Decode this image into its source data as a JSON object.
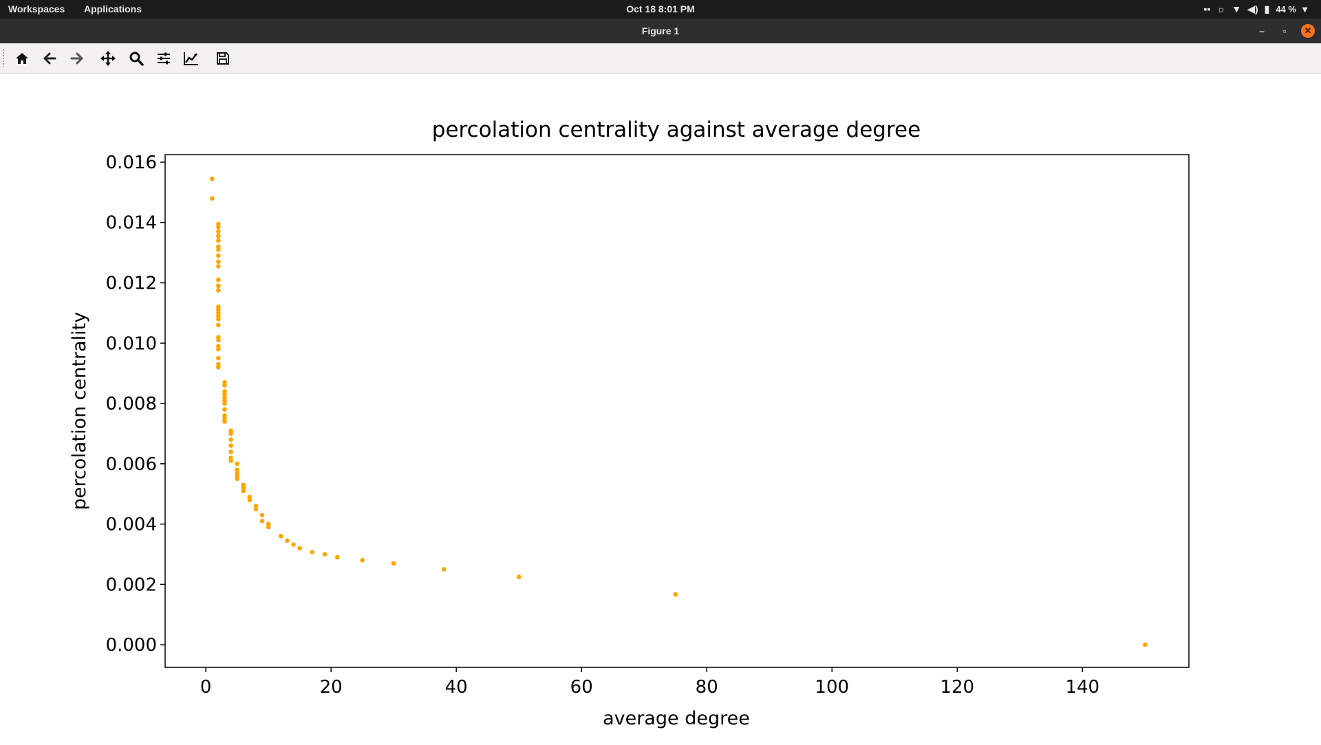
{
  "system_bar": {
    "workspaces_label": "Workspaces",
    "applications_label": "Applications",
    "clock": "Oct 18   8:01 PM",
    "battery": "44 %"
  },
  "window": {
    "title": "Figure 1"
  },
  "toolbar": {
    "tools": [
      "home-icon",
      "back-arrow-icon",
      "forward-arrow-icon",
      "pan-icon",
      "zoom-icon",
      "configure-subplots-icon",
      "edit-axes-icon",
      "save-icon"
    ]
  },
  "colors": {
    "points": "#ffa500",
    "topbar": "#1b1b1b",
    "titlebar": "#2e2e2e",
    "close_button": "#f47421"
  },
  "chart_data": {
    "type": "scatter",
    "title": "percolation centrality against average degree",
    "xlabel": "average degree",
    "ylabel": "percolation centrality",
    "xlim": [
      -6.5,
      157
    ],
    "ylim": [
      -0.00075,
      0.01625
    ],
    "xticks": [
      0,
      20,
      40,
      60,
      80,
      100,
      120,
      140
    ],
    "xtick_labels": [
      "0",
      "20",
      "40",
      "60",
      "80",
      "100",
      "120",
      "140"
    ],
    "yticks": [
      0,
      0.002,
      0.004,
      0.006,
      0.008,
      0.01,
      0.012,
      0.014,
      0.016
    ],
    "ytick_labels": [
      "0.000",
      "0.002",
      "0.004",
      "0.006",
      "0.008",
      "0.010",
      "0.012",
      "0.014",
      "0.016"
    ],
    "grid": false,
    "legend": false,
    "series": [
      {
        "color": "#ffa500",
        "x": [
          1,
          1,
          2,
          2,
          2,
          2,
          2,
          2,
          2,
          2,
          2,
          2,
          2,
          2,
          2,
          2,
          2,
          2,
          2,
          2,
          2,
          2,
          2,
          2,
          2,
          2,
          2,
          2,
          2,
          3,
          3,
          3,
          3,
          3,
          3,
          3,
          3,
          3,
          3,
          3,
          4,
          4,
          4,
          4,
          4,
          4,
          4,
          5,
          5,
          5,
          5,
          5,
          6,
          6,
          6,
          7,
          7,
          8,
          8,
          9,
          9,
          10,
          10,
          12,
          13,
          14,
          15,
          17,
          19,
          21,
          25,
          30,
          38,
          50,
          75,
          150
        ],
        "y": [
          0.01545,
          0.0148,
          0.01395,
          0.01385,
          0.0137,
          0.01355,
          0.0134,
          0.0132,
          0.0131,
          0.0129,
          0.0127,
          0.01255,
          0.0121,
          0.0119,
          0.01175,
          0.0112,
          0.0111,
          0.0109,
          0.0108,
          0.0106,
          0.0102,
          0.0101,
          0.0099,
          0.0098,
          0.0095,
          0.0093,
          0.0092,
          0.0119,
          0.011,
          0.0087,
          0.0086,
          0.0084,
          0.0083,
          0.0082,
          0.0081,
          0.0078,
          0.0076,
          0.0075,
          0.0074,
          0.008,
          0.0071,
          0.007,
          0.0068,
          0.0066,
          0.0064,
          0.0062,
          0.0061,
          0.006,
          0.0058,
          0.0057,
          0.0056,
          0.0055,
          0.0053,
          0.0052,
          0.0051,
          0.0049,
          0.0048,
          0.0046,
          0.0045,
          0.0043,
          0.0041,
          0.004,
          0.0039,
          0.0036,
          0.00345,
          0.00332,
          0.0032,
          0.00307,
          0.003,
          0.0029,
          0.0028,
          0.0027,
          0.0025,
          0.00225,
          0.00167,
          0.0
        ]
      }
    ]
  }
}
